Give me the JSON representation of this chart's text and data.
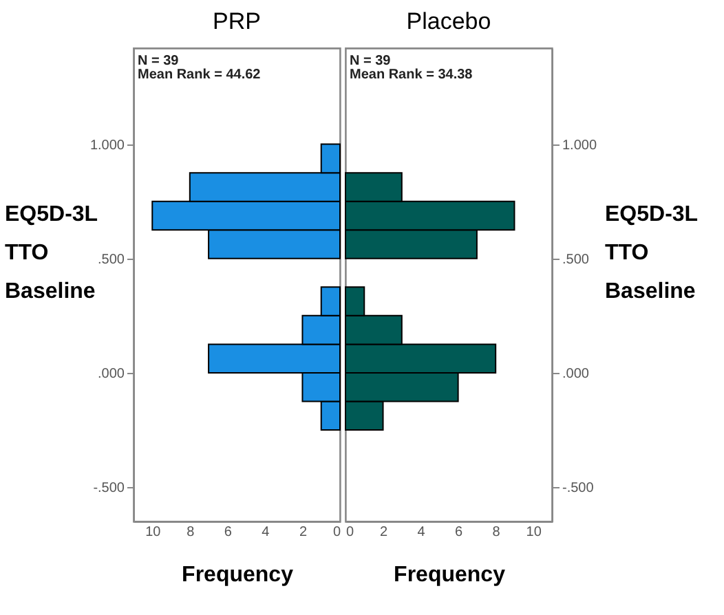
{
  "chart_data": [
    {
      "type": "histogram",
      "orientation": "horizontal",
      "title": "PRP",
      "xlabel": "Frequency",
      "ylabel": "EQ5D-3L TTO Baseline",
      "bins": [
        -0.25,
        -0.125,
        0,
        0.125,
        0.25,
        0.375,
        0.5,
        0.625,
        0.75,
        0.875,
        1.0
      ],
      "values": [
        1,
        2,
        7,
        2,
        1,
        0,
        7,
        10,
        8,
        1
      ],
      "color": "#1a8fe3",
      "xlim": [
        11,
        0
      ],
      "xticks": [
        10,
        8,
        6,
        4,
        2,
        0
      ],
      "ylim": [
        -0.65,
        1.42
      ],
      "yticks": [
        {
          "value": -0.5,
          "label": "-.500"
        },
        {
          "value": 0,
          "label": ".000"
        },
        {
          "value": 0.5,
          "label": ".500"
        },
        {
          "value": 1.0,
          "label": "1.000"
        }
      ],
      "annotations": [
        "N = 39",
        "Mean Rank = 44.62"
      ],
      "grid": false,
      "legend": false
    },
    {
      "type": "histogram",
      "orientation": "horizontal",
      "title": "Placebo",
      "xlabel": "Frequency",
      "ylabel": "EQ5D-3L TTO Baseline",
      "bins": [
        -0.25,
        -0.125,
        0,
        0.125,
        0.25,
        0.375,
        0.5,
        0.625,
        0.75,
        0.875,
        1.0
      ],
      "values": [
        2,
        6,
        8,
        3,
        1,
        0,
        7,
        9,
        3,
        0
      ],
      "color": "#005a55",
      "xlim": [
        0,
        11
      ],
      "xticks": [
        0,
        2,
        4,
        6,
        8,
        10
      ],
      "ylim": [
        -0.65,
        1.42
      ],
      "yticks": [
        {
          "value": -0.5,
          "label": "-.500"
        },
        {
          "value": 0,
          "label": ".000"
        },
        {
          "value": 0.5,
          "label": ".500"
        },
        {
          "value": 1.0,
          "label": "1.000"
        }
      ],
      "annotations": [
        "N = 39",
        "Mean Rank = 34.38"
      ],
      "grid": false,
      "legend": false
    }
  ]
}
